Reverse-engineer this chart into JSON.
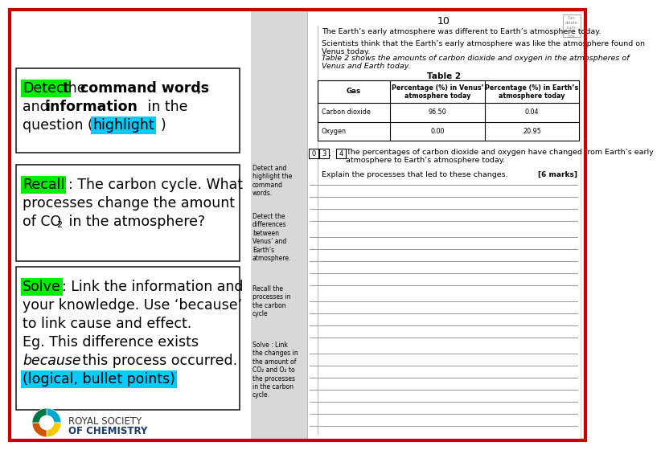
{
  "bg_color": "#ffffff",
  "outer_border_color": "#cc0000",
  "page_number": "10",
  "page_text1": "The Earth’s early atmosphere was different to Earth’s atmosphere today.",
  "page_text2": "Scientists think that the Earth’s early atmosphere was like the atmosphere found on\nVenus today.",
  "page_text3": "Table 2 shows the amounts of carbon dioxide and oxygen in the atmospheres of\nVenus and Earth today.",
  "table_title": "Table 2",
  "table_col1_header": "Gas",
  "table_col2_header": "Percentage (%) in Venus’\natmosphere today",
  "table_col3_header": "Percentage (%) in Earth’s\natmosphere today",
  "table_row1": [
    "Carbon dioxide",
    "96.50",
    "0.04"
  ],
  "table_row2": [
    "Oxygen",
    "0.00",
    "20.95"
  ],
  "question_boxes": [
    "0",
    "3",
    "4"
  ],
  "question_text": "The percentages of carbon dioxide and oxygen have changed from Earth’s early\natmosphere to Earth’s atmosphere today.",
  "question_prompt": "Explain the processes that led to these changes.",
  "marks_text": "[6 marks]",
  "hint1": "Detect and\nhighlight the\ncommand\nwords.",
  "hint2": "Detect the\ndifferences\nbetween\nVenus’ and\nEarth’s\natmosphere.",
  "hint3": "Recall the\nprocesses in\nthe carbon\ncycle",
  "hint4": "Solve : Link\nthe changes in\nthe amount of\nCO₂ and O₂ to\nthe processes\nin the carbon\ncycle.",
  "box1_line1_pre": "the ",
  "box1_line1_bold": "command words",
  "box1_line1_post": ",",
  "box1_line1_kw": "Detect",
  "box1_line2_pre": "and ",
  "box1_line2_bold": "information",
  "box1_line2_post": " in the",
  "box1_line3_pre": "question (",
  "box1_line3_hl": "highlight",
  "box1_line3_post": ")",
  "box2_kw": "Recall",
  "box2_line1_post": ": The carbon cycle. What",
  "box2_line2": "processes change the amount",
  "box2_line3_pre": "of CO",
  "box2_line3_sub": "2",
  "box2_line3_post": " in the atmosphere?",
  "box3_kw": "Solve",
  "box3_line1_post": ": Link the information and",
  "box3_line2": "your knowledge. Use ‘because’",
  "box3_line3": "to link cause and effect.",
  "box3_line4": "Eg. This difference exists",
  "box3_line5_italic": "because",
  "box3_line5_post": " this process occurred.",
  "box3_line6_hl": "(logical, bullet points)",
  "green_hl": "#00ee00",
  "cyan_hl": "#00ccff",
  "rsc_text1": "ROYAL SOCIETY",
  "rsc_text2": "OF CHEMISTRY",
  "rsc_colors": [
    "#00aacc",
    "#f5c800",
    "#cc5500",
    "#007744"
  ]
}
